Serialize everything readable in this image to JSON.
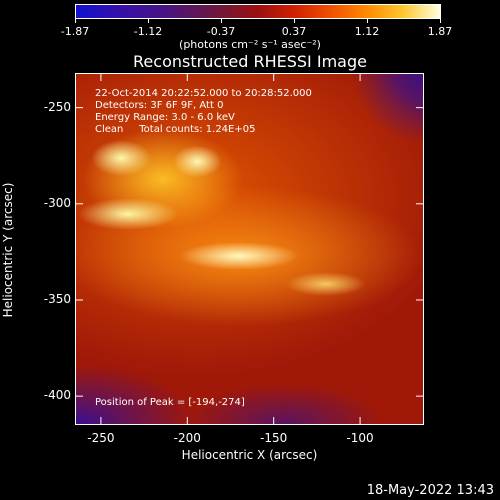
{
  "colorbar": {
    "tick_labels": [
      "-1.87",
      "-1.12",
      "-0.37",
      "0.37",
      "1.12",
      "1.87"
    ],
    "units": "(photons cm⁻² s⁻¹ asec⁻²)",
    "min": -1.87,
    "max": 1.87
  },
  "chart_data": {
    "type": "heatmap",
    "title": "Reconstructed RHESSI Image",
    "xlabel": "Heliocentric X (arcsec)",
    "ylabel": "Heliocentric Y (arcsec)",
    "xlim": [
      -265,
      -63
    ],
    "ylim": [
      -415,
      -232
    ],
    "x_ticks": [
      "-250",
      "-200",
      "-150",
      "-100"
    ],
    "x_tick_values": [
      -250,
      -200,
      -150,
      -100
    ],
    "y_ticks": [
      "-250",
      "-300",
      "-350",
      "-400"
    ],
    "y_tick_values": [
      -250,
      -300,
      -350,
      -400
    ],
    "annotations": {
      "line1": "22-Oct-2014 20:22:52.000 to 20:28:52.000",
      "line2": "Detectors: 3F 6F 9F, Att 0",
      "line3": "Energy Range: 3.0 - 6.0 keV",
      "line4": "Clean     Total counts: 1.24E+05",
      "peak": "Position of Peak = [-194,-274]"
    },
    "peak": [
      -194,
      -274
    ]
  },
  "timestamp": "18-May-2022 13:43"
}
